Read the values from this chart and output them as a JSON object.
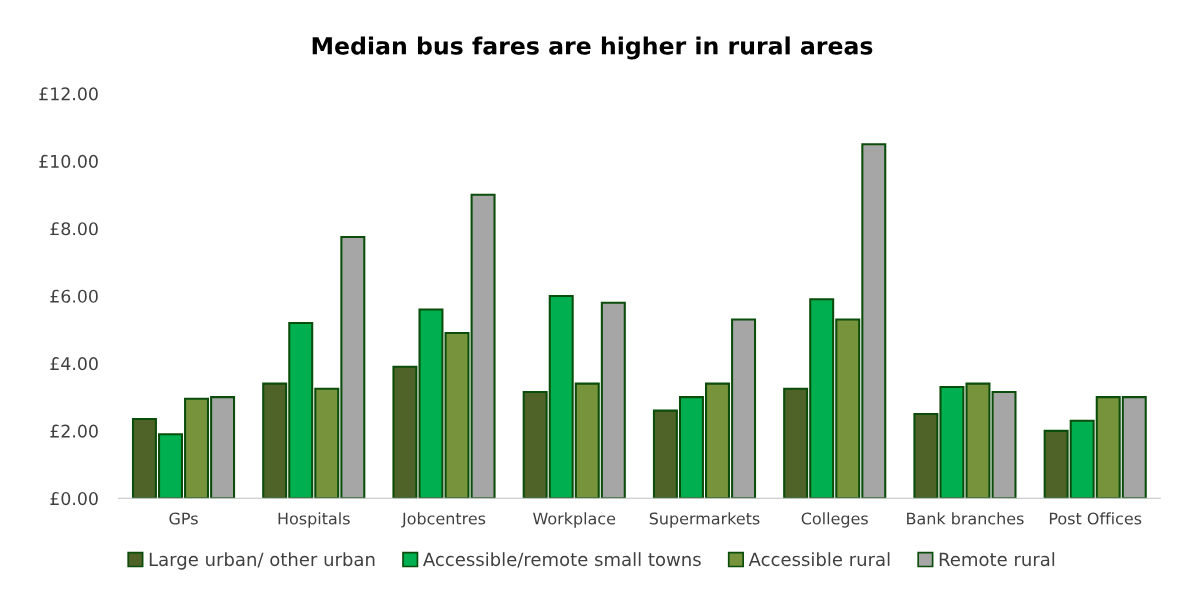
{
  "chart_data": {
    "type": "bar",
    "title": "Median bus fares are higher in rural areas",
    "categories": [
      "GPs",
      "Hospitals",
      "Jobcentres",
      "Workplace",
      "Supermarkets",
      "Colleges",
      "Bank branches",
      "Post Offices"
    ],
    "series": [
      {
        "name": "Large urban/ other urban",
        "color": "#4f6228",
        "values": [
          2.35,
          3.4,
          3.9,
          3.15,
          2.6,
          3.25,
          2.5,
          2.0
        ]
      },
      {
        "name": "Accessible/remote small towns",
        "color": "#00b050",
        "values": [
          1.9,
          5.2,
          5.6,
          6.0,
          3.0,
          5.9,
          3.3,
          2.3
        ]
      },
      {
        "name": "Accessible rural",
        "color": "#77933c",
        "values": [
          2.95,
          3.25,
          4.9,
          3.4,
          3.4,
          5.3,
          3.4,
          3.0
        ]
      },
      {
        "name": "Remote rural",
        "color": "#a6a6a6",
        "values": [
          3.0,
          7.75,
          9.0,
          5.8,
          5.3,
          10.5,
          3.15,
          3.0
        ]
      }
    ],
    "ylim": [
      0,
      12
    ],
    "yticks": [
      {
        "value": 0,
        "label": "£0.00"
      },
      {
        "value": 2,
        "label": "£2.00"
      },
      {
        "value": 4,
        "label": "£4.00"
      },
      {
        "value": 6,
        "label": "£6.00"
      },
      {
        "value": 8,
        "label": "£8.00"
      },
      {
        "value": 10,
        "label": "£10.00"
      },
      {
        "value": 12,
        "label": "£12.00"
      }
    ],
    "grid": false,
    "legend": "bottom"
  }
}
